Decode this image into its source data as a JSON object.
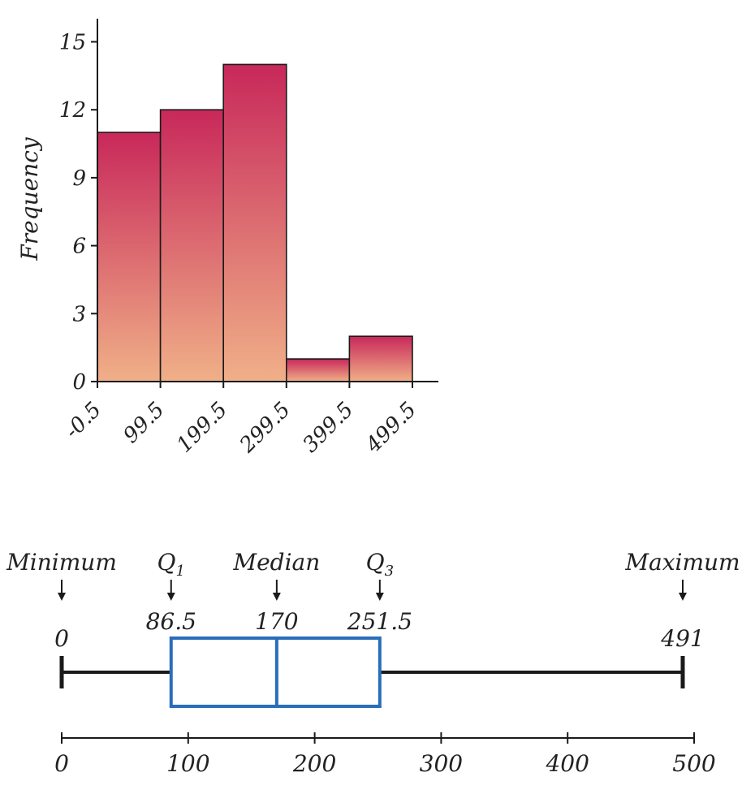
{
  "chart_data": [
    {
      "type": "bar",
      "subtype": "histogram",
      "xlabel": "",
      "ylabel": "Frequency",
      "bin_edges": [
        -0.5,
        99.5,
        199.5,
        299.5,
        399.5,
        499.5
      ],
      "bin_edge_labels": [
        "-0.5",
        "99.5",
        "199.5",
        "299.5",
        "399.5",
        "499.5"
      ],
      "values": [
        11,
        12,
        14,
        1,
        2
      ],
      "ylim": [
        0,
        16
      ],
      "yticks": [
        0,
        3,
        6,
        9,
        12,
        15
      ],
      "ytick_labels": [
        "0",
        "3",
        "6",
        "9",
        "12",
        "15"
      ],
      "grid": false,
      "colors": {
        "bar_top": "#c8285a",
        "bar_bottom": "#f0b088",
        "edge": "#1a1a1a"
      }
    },
    {
      "type": "boxplot",
      "summary": {
        "minimum": 0,
        "q1": 86.5,
        "median": 170,
        "q3": 251.5,
        "maximum": 491
      },
      "labels": {
        "minimum": "Minimum",
        "q1": "Q1",
        "median": "Median",
        "q3": "Q3",
        "maximum": "Maximum"
      },
      "value_labels": {
        "minimum": "0",
        "q1": "86.5",
        "median": "170",
        "q3": "251.5",
        "maximum": "491"
      },
      "xlim": [
        0,
        500
      ],
      "xticks": [
        0,
        100,
        200,
        300,
        400,
        500
      ],
      "xtick_labels": [
        "0",
        "100",
        "200",
        "300",
        "400",
        "500"
      ],
      "colors": {
        "box": "#2a6ebb",
        "whisker": "#1a1a1a"
      }
    }
  ]
}
